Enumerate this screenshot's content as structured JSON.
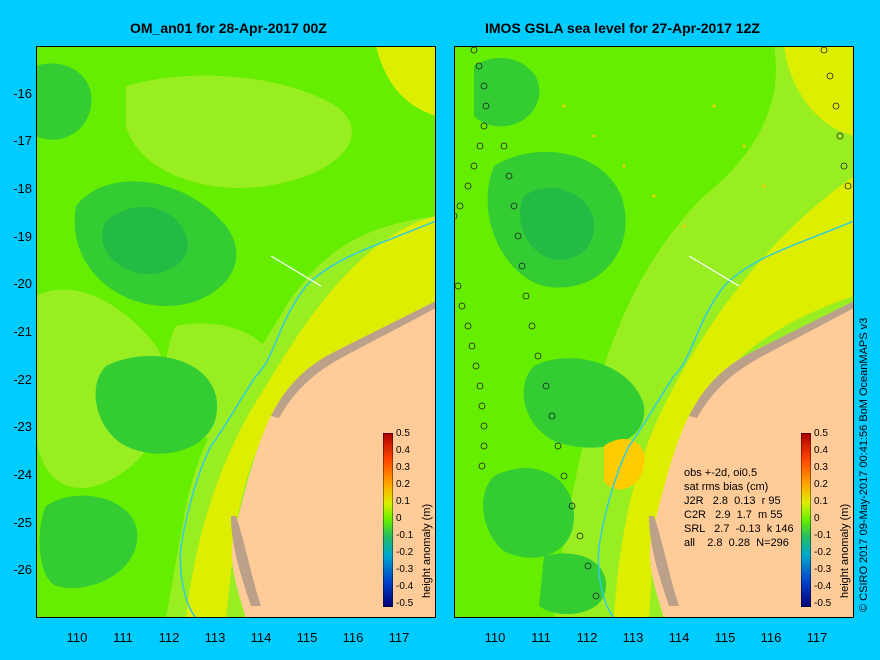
{
  "left_panel": {
    "title": "OM_an01 for 28-Apr-2017 00Z"
  },
  "right_panel": {
    "title": "IMOS GSLA sea level  for 27-Apr-2017 12Z"
  },
  "axes": {
    "lat_ticks": [
      "-16",
      "-17",
      "-18",
      "-19",
      "-20",
      "-21",
      "-22",
      "-23",
      "-24",
      "-25",
      "-26"
    ],
    "lon_ticks": [
      "110",
      "111",
      "112",
      "113",
      "114",
      "115",
      "116",
      "117"
    ]
  },
  "colorbar": {
    "label": "height anomaly (m)",
    "ticks": [
      "0.5",
      "0.4",
      "0.3",
      "0.2",
      "0.1",
      "0",
      "-0.1",
      "-0.2",
      "-0.3",
      "-0.4",
      "-0.5"
    ]
  },
  "stats": {
    "line1": "obs +-2d, oi0.5",
    "line2": "sat rms bias (cm)",
    "line3": "J2R   2.8  0.13  r 95",
    "line4": "C2R   2.9  1.7  m 55",
    "line5": "SRL   2.7  -0.13  k 146",
    "line6": "all    2.8  0.28  N=296"
  },
  "credit": "© CSIRO 2017   09-May-2017 00:41:56 BoM OceanMAPS v3",
  "colors": {
    "background": "#00ccff",
    "land": "#ffcc99",
    "green_mid": "#66ee00",
    "green_light": "#99ee22",
    "green_dark": "#33cc33",
    "yellow": "#ddee00",
    "orange": "#ffcc00",
    "coast_rock": "#bba08a",
    "isobath": "#33ccdd"
  }
}
